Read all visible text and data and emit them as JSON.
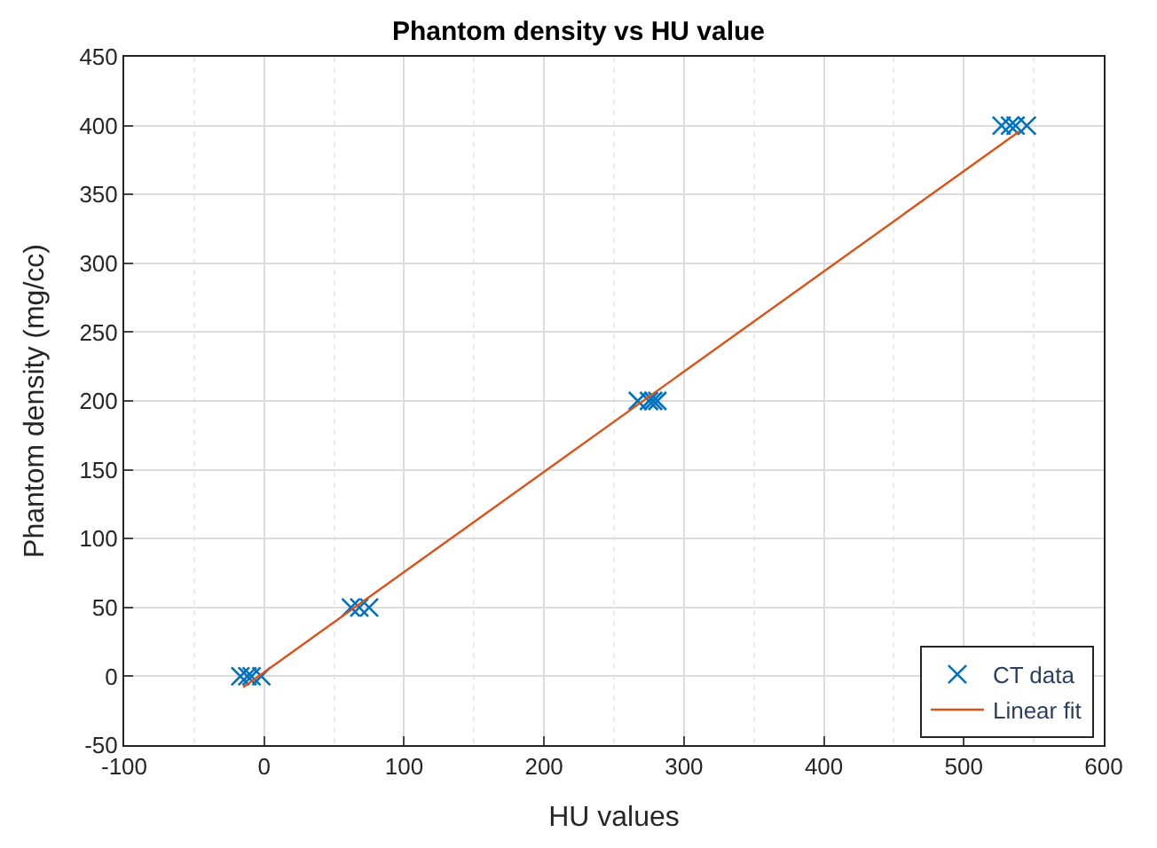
{
  "chart_data": {
    "type": "scatter",
    "title": "Phantom density vs HU value",
    "xlabel": "HU values",
    "ylabel": "Phantom density (mg/cc)",
    "series": [
      {
        "name": "CT data",
        "color": "#0072bd",
        "marker": "cross",
        "x": [
          -17,
          -12,
          -9,
          -2,
          62,
          68,
          75,
          267,
          275,
          278,
          281,
          527,
          533,
          537,
          545
        ],
        "values": [
          0,
          0,
          0,
          0,
          50,
          50,
          50,
          200,
          200,
          200,
          200,
          400,
          400,
          400,
          400
        ]
      },
      {
        "name": "Linear fit",
        "type": "line",
        "color": "#d95319",
        "x": [
          -15,
          540
        ],
        "values": [
          -8,
          396
        ]
      }
    ],
    "xlim": [
      -100,
      600
    ],
    "xticks": [
      -100,
      0,
      100,
      200,
      300,
      400,
      500,
      600
    ],
    "ylim": [
      -50,
      450
    ],
    "yticks": [
      -50,
      0,
      50,
      100,
      150,
      200,
      250,
      300,
      350,
      400,
      450
    ],
    "grid": true,
    "legend": "bottom right"
  }
}
